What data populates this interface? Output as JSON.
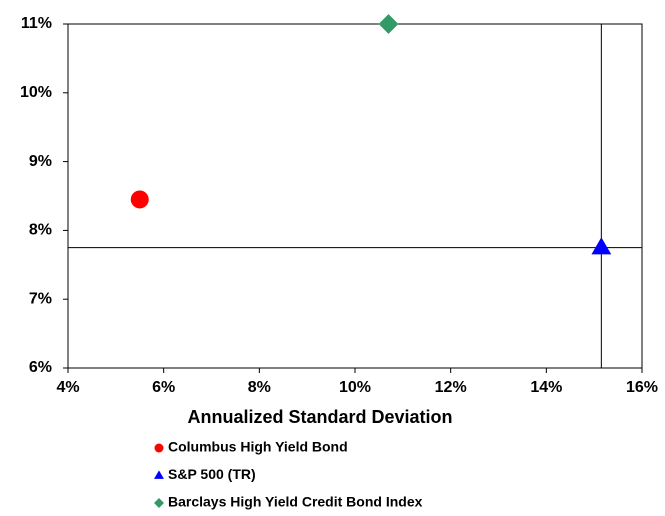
{
  "chart_data": {
    "type": "scatter",
    "xlabel": "Annualized Standard Deviation",
    "xlim": [
      4,
      16
    ],
    "xticks": [
      {
        "value": 4,
        "label": "4%"
      },
      {
        "value": 6,
        "label": "6%"
      },
      {
        "value": 8,
        "label": "8%"
      },
      {
        "value": 10,
        "label": "10%"
      },
      {
        "value": 12,
        "label": "12%"
      },
      {
        "value": 14,
        "label": "14%"
      },
      {
        "value": 16,
        "label": "16%"
      }
    ],
    "ylim": [
      6,
      11
    ],
    "yticks": [
      {
        "value": 6,
        "label": "6%"
      },
      {
        "value": 7,
        "label": "7%"
      },
      {
        "value": 8,
        "label": "8%"
      },
      {
        "value": 9,
        "label": "9%"
      },
      {
        "value": 10,
        "label": "10%"
      },
      {
        "value": 11,
        "label": "11%"
      }
    ],
    "series": [
      {
        "name": "Columbus High Yield Bond",
        "color": "#ff0000",
        "marker": "circle",
        "x": [
          5.5
        ],
        "values": [
          8.45
        ]
      },
      {
        "name": "S&P 500 (TR)",
        "color": "#0000ff",
        "marker": "triangle",
        "x": [
          15.15
        ],
        "values": [
          7.75
        ]
      },
      {
        "name": "Barclays High Yield Credit Bond Index",
        "color": "#339966",
        "marker": "diamond",
        "x": [
          10.7
        ],
        "values": [
          11.0
        ]
      }
    ]
  }
}
